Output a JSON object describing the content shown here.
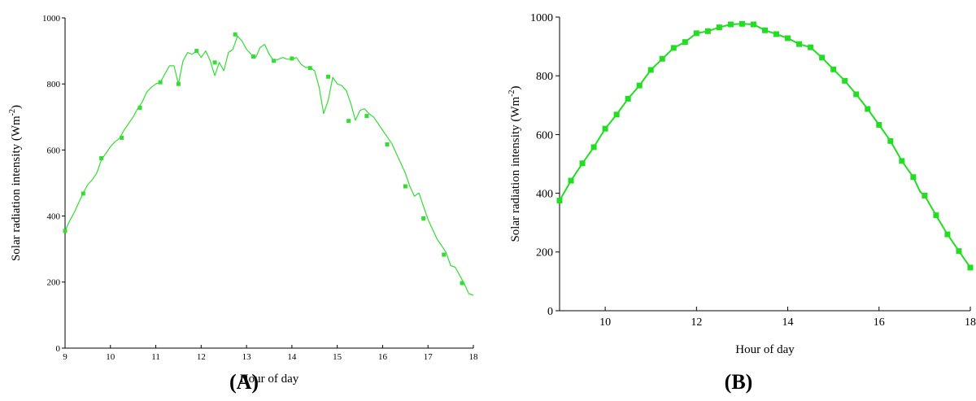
{
  "chart_data": [
    {
      "type": "line",
      "panel_label": "(A)",
      "xlabel": "Hour of day",
      "ylabel": "Solar radiation intensity (Wm",
      "ylabel_superscript": "-2",
      "ylabel_close": ")",
      "xlim": [
        9,
        18
      ],
      "ylim": [
        0,
        1000
      ],
      "xticks": [
        9,
        10,
        11,
        12,
        13,
        14,
        15,
        16,
        17,
        18
      ],
      "yticks": [
        0,
        200,
        400,
        600,
        800,
        1000
      ],
      "series_color": "#33dd33",
      "line_x": [
        9.0,
        9.1,
        9.2,
        9.3,
        9.4,
        9.5,
        9.6,
        9.7,
        9.8,
        9.9,
        10.0,
        10.1,
        10.2,
        10.3,
        10.4,
        10.5,
        10.6,
        10.7,
        10.8,
        10.9,
        11.0,
        11.1,
        11.2,
        11.3,
        11.4,
        11.5,
        11.6,
        11.7,
        11.8,
        11.9,
        12.0,
        12.1,
        12.2,
        12.3,
        12.4,
        12.5,
        12.6,
        12.7,
        12.8,
        12.9,
        13.0,
        13.1,
        13.2,
        13.3,
        13.4,
        13.5,
        13.6,
        13.7,
        13.8,
        13.9,
        14.0,
        14.1,
        14.2,
        14.3,
        14.4,
        14.5,
        14.6,
        14.7,
        14.8,
        14.9,
        15.0,
        15.1,
        15.2,
        15.3,
        15.4,
        15.5,
        15.6,
        15.7,
        15.8,
        15.9,
        16.0,
        16.1,
        16.2,
        16.3,
        16.4,
        16.5,
        16.6,
        16.7,
        16.8,
        16.9,
        17.0,
        17.1,
        17.2,
        17.3,
        17.4,
        17.5,
        17.6,
        17.7,
        17.8,
        17.9,
        18.0
      ],
      "line_y": [
        355,
        385,
        410,
        440,
        470,
        495,
        510,
        530,
        570,
        590,
        610,
        625,
        635,
        660,
        680,
        700,
        725,
        745,
        775,
        790,
        800,
        805,
        830,
        855,
        855,
        800,
        870,
        895,
        890,
        900,
        880,
        900,
        870,
        825,
        865,
        840,
        895,
        905,
        945,
        930,
        905,
        890,
        880,
        910,
        920,
        890,
        870,
        875,
        880,
        875,
        875,
        880,
        860,
        850,
        850,
        840,
        790,
        710,
        750,
        820,
        800,
        795,
        780,
        740,
        690,
        720,
        725,
        710,
        700,
        680,
        660,
        640,
        620,
        590,
        560,
        530,
        490,
        460,
        470,
        430,
        390,
        360,
        330,
        310,
        290,
        250,
        245,
        220,
        195,
        165,
        160
      ],
      "marker_x": [
        9.0,
        9.4,
        9.8,
        10.25,
        10.65,
        11.1,
        11.5,
        11.9,
        12.3,
        12.75,
        13.15,
        13.6,
        14.0,
        14.4,
        14.8,
        15.25,
        15.65,
        16.1,
        16.5,
        16.9,
        17.35,
        17.75
      ],
      "marker_y": [
        355,
        468,
        575,
        637,
        728,
        805,
        800,
        900,
        865,
        950,
        883,
        870,
        877,
        848,
        822,
        688,
        703,
        617,
        490,
        393,
        283,
        197
      ]
    },
    {
      "type": "line",
      "panel_label": "(B)",
      "xlabel": "Hour of day",
      "ylabel": "Solar radiation intensity (Wm",
      "ylabel_superscript": "-2",
      "ylabel_close": ")",
      "xlim": [
        9,
        18
      ],
      "ylim": [
        0,
        1000
      ],
      "xticks": [
        10,
        12,
        14,
        16,
        18
      ],
      "yticks": [
        0,
        200,
        400,
        600,
        800,
        1000
      ],
      "series_color": "#22dd22",
      "line_x": [
        9.0,
        9.25,
        9.5,
        9.75,
        10.0,
        10.25,
        10.5,
        10.75,
        11.0,
        11.25,
        11.5,
        11.75,
        12.0,
        12.25,
        12.5,
        12.75,
        13.0,
        13.25,
        13.5,
        13.75,
        14.0,
        14.25,
        14.5,
        14.75,
        15.0,
        15.25,
        15.5,
        15.75,
        16.0,
        16.25,
        16.5,
        16.75,
        16.9,
        17.0,
        17.25,
        17.5,
        17.75,
        18.0
      ],
      "line_y": [
        375,
        443,
        502,
        557,
        620,
        668,
        722,
        767,
        820,
        858,
        895,
        915,
        945,
        952,
        965,
        975,
        977,
        975,
        955,
        942,
        928,
        908,
        897,
        862,
        822,
        783,
        737,
        687,
        633,
        578,
        510,
        455,
        405,
        392,
        325,
        260,
        203,
        147
      ],
      "marker_x": [
        9.0,
        9.25,
        9.5,
        9.75,
        10.0,
        10.25,
        10.5,
        10.75,
        11.0,
        11.25,
        11.5,
        11.75,
        12.0,
        12.25,
        12.5,
        12.75,
        13.0,
        13.25,
        13.5,
        13.75,
        14.0,
        14.25,
        14.5,
        14.75,
        15.0,
        15.25,
        15.5,
        15.75,
        16.0,
        16.25,
        16.5,
        16.75,
        17.0,
        17.25,
        17.5,
        17.75,
        18.0
      ],
      "marker_y": [
        375,
        443,
        502,
        557,
        620,
        668,
        722,
        767,
        820,
        858,
        895,
        915,
        945,
        952,
        965,
        975,
        977,
        975,
        955,
        942,
        928,
        908,
        897,
        862,
        822,
        783,
        737,
        687,
        633,
        578,
        510,
        455,
        392,
        325,
        260,
        203,
        147
      ]
    }
  ]
}
